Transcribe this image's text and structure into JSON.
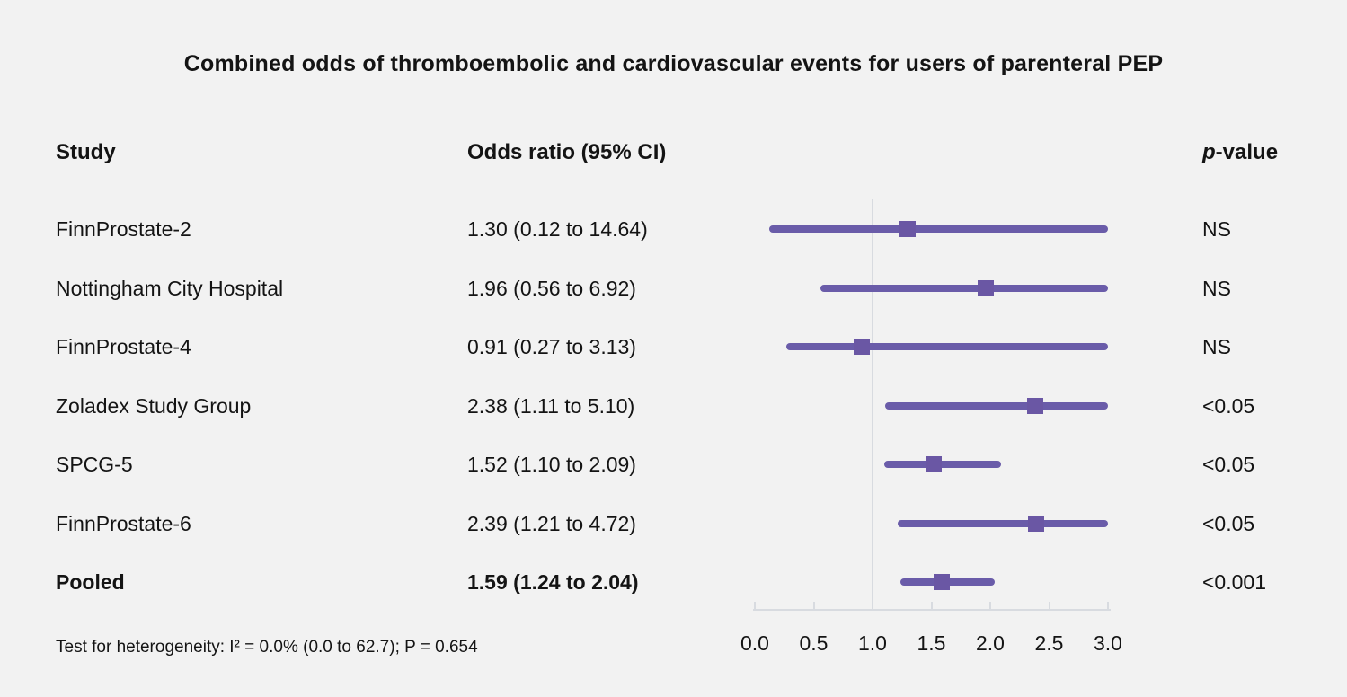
{
  "columns": {
    "study": "Study",
    "odds_ratio": "Odds ratio (95% CI)",
    "p_prefix": "p",
    "p_suffix": "-value"
  },
  "footer": "Test for heterogeneity: I² = 0.0% (0.0 to 62.7); P = 0.654",
  "chart_data": {
    "type": "forest",
    "title": "Combined odds of thromboembolic and cardiovascular events for users of parenteral PEP",
    "studies": [
      {
        "label": "FinnProstate-2",
        "or": 1.3,
        "ci_low": 0.12,
        "ci_high": 14.64,
        "or_text": "1.30 (0.12 to 14.64)",
        "p_value": "NS",
        "pooled": false
      },
      {
        "label": "Nottingham City Hospital",
        "or": 1.96,
        "ci_low": 0.56,
        "ci_high": 6.92,
        "or_text": "1.96 (0.56 to 6.92)",
        "p_value": "NS",
        "pooled": false
      },
      {
        "label": "FinnProstate-4",
        "or": 0.91,
        "ci_low": 0.27,
        "ci_high": 3.13,
        "or_text": "0.91 (0.27 to 3.13)",
        "p_value": "NS",
        "pooled": false
      },
      {
        "label": "Zoladex Study Group",
        "or": 2.38,
        "ci_low": 1.11,
        "ci_high": 5.1,
        "or_text": "2.38 (1.11 to 5.10)",
        "p_value": "<0.05",
        "pooled": false
      },
      {
        "label": "SPCG-5",
        "or": 1.52,
        "ci_low": 1.1,
        "ci_high": 2.09,
        "or_text": "1.52 (1.10 to 2.09)",
        "p_value": "<0.05",
        "pooled": false
      },
      {
        "label": "FinnProstate-6",
        "or": 2.39,
        "ci_low": 1.21,
        "ci_high": 4.72,
        "or_text": "2.39 (1.21 to 4.72)",
        "p_value": "<0.05",
        "pooled": false
      },
      {
        "label": "Pooled",
        "or": 1.59,
        "ci_low": 1.24,
        "ci_high": 2.04,
        "or_text": "1.59 (1.24 to 2.04)",
        "p_value": "<0.001",
        "pooled": true
      }
    ],
    "xaxis": {
      "label_values": [
        "0.0",
        "0.5",
        "1.0",
        "1.5",
        "2.0",
        "2.5",
        "3.0"
      ],
      "min": 0.0,
      "max": 3.0,
      "reference_line": 1.0,
      "clip_max": 3.0
    },
    "colors": {
      "marker": "#6A57A4",
      "line": "#6A5CA9",
      "axis": "#D8DBE0",
      "background": "#F2F2F2",
      "text": "#141414"
    }
  }
}
